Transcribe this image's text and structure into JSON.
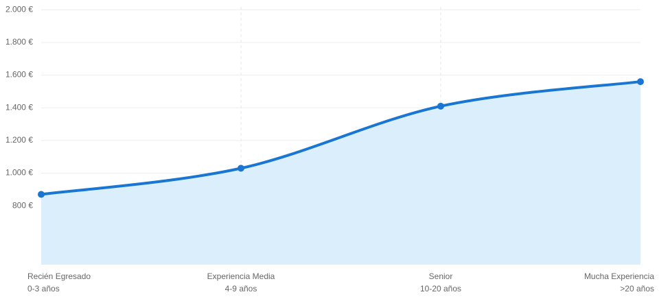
{
  "chart_data": {
    "type": "area",
    "categories": [
      "Recién Egresado",
      "Experiencia Media",
      "Senior",
      "Mucha Experiencia"
    ],
    "category_sublabels": [
      "0-3 años",
      "4-9 años",
      "10-20 años",
      ">20 años"
    ],
    "values": [
      870,
      1030,
      1410,
      1560
    ],
    "color": "#1976d2",
    "fill_color": "#dbeefc",
    "ylim": [
      440,
      2000
    ],
    "yticks": [
      {
        "value": 800,
        "label": "800 €"
      },
      {
        "value": 1000,
        "label": "1.000 €"
      },
      {
        "value": 1200,
        "label": "1.200 €"
      },
      {
        "value": 1400,
        "label": "1.400 €"
      },
      {
        "value": 1600,
        "label": "1.600 €"
      },
      {
        "value": 1800,
        "label": "1.800 €"
      },
      {
        "value": 2000,
        "label": "2.000 €"
      }
    ],
    "grid": true
  }
}
